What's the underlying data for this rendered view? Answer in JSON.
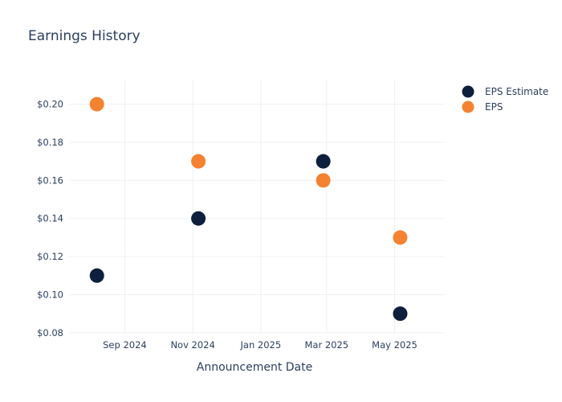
{
  "chart_data": {
    "type": "scatter",
    "title": "Earnings History",
    "xlabel": "Announcement Date",
    "ylabel": "",
    "x_ticks": [
      {
        "date": "2024-09-01",
        "label": "Sep 2024"
      },
      {
        "date": "2024-11-01",
        "label": "Nov 2024"
      },
      {
        "date": "2025-01-01",
        "label": "Jan 2025"
      },
      {
        "date": "2025-03-01",
        "label": "Mar 2025"
      },
      {
        "date": "2025-05-01",
        "label": "May 2025"
      }
    ],
    "y_ticks": [
      {
        "value": 0.08,
        "label": "$0.08"
      },
      {
        "value": 0.1,
        "label": "$0.10"
      },
      {
        "value": 0.12,
        "label": "$0.12"
      },
      {
        "value": 0.14,
        "label": "$0.14"
      },
      {
        "value": 0.16,
        "label": "$0.16"
      },
      {
        "value": 0.18,
        "label": "$0.18"
      },
      {
        "value": 0.2,
        "label": "$0.20"
      }
    ],
    "xlim": [
      "2024-07-13",
      "2025-06-15"
    ],
    "ylim": [
      0.0795,
      0.2125
    ],
    "grid": true,
    "legend": "top-right",
    "series": [
      {
        "name": "EPS Estimate",
        "color": "#0d1f3d",
        "points": [
          {
            "x": "2024-08-07",
            "y": 0.11
          },
          {
            "x": "2024-11-06",
            "y": 0.14
          },
          {
            "x": "2025-02-26",
            "y": 0.17
          },
          {
            "x": "2025-05-06",
            "y": 0.09
          }
        ]
      },
      {
        "name": "EPS",
        "color": "#f58231",
        "points": [
          {
            "x": "2024-08-07",
            "y": 0.2
          },
          {
            "x": "2024-11-06",
            "y": 0.17
          },
          {
            "x": "2025-02-26",
            "y": 0.16
          },
          {
            "x": "2025-05-06",
            "y": 0.13
          }
        ]
      }
    ]
  }
}
